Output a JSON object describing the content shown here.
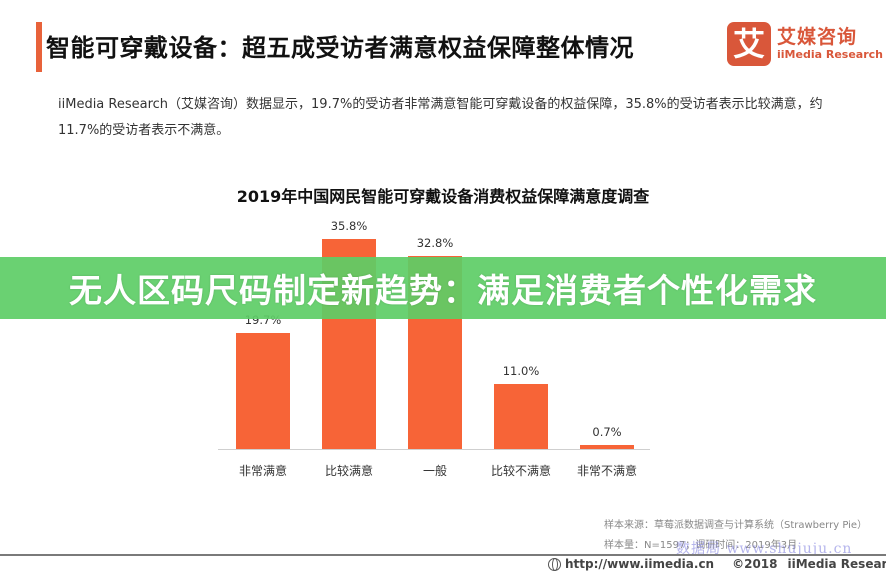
{
  "header": {
    "title": "智能可穿戴设备：超五成受访者满意权益保障整体情况",
    "accent_color": "#e8623a"
  },
  "logo": {
    "mark": "艾",
    "name_cn": "艾媒咨询",
    "name_en": "iiMedia Research",
    "color": "#d9573a"
  },
  "intro": {
    "text": "iiMedia Research（艾媒咨询）数据显示，19.7%的受访者非常满意智能可穿戴设备的权益保障，35.8%的受访者表示比较满意，约11.7%的受访者表示不满意。"
  },
  "banner": {
    "text": "无人区码尺码制定新趋势：满足消费者个性化需求",
    "color": "#5dcd66"
  },
  "chart_data": {
    "type": "bar",
    "title": "2019年中国网民智能可穿戴设备消费权益保障满意度调查",
    "categories": [
      "非常满意",
      "比较满意",
      "一般",
      "比较不满意",
      "非常不满意"
    ],
    "values": [
      19.7,
      35.8,
      32.8,
      11.0,
      0.7
    ],
    "value_labels": [
      "19.7%",
      "35.8%",
      "32.8%",
      "11.0%",
      "0.7%"
    ],
    "xlabel": "",
    "ylabel": "",
    "unit": "%",
    "ylim": [
      0,
      40
    ],
    "grid": false,
    "legend": "none",
    "bar_color": "#f76437"
  },
  "source": {
    "line1": "样本来源：草莓派数据调查与计算系统（Strawberry Pie）",
    "line2": "样本量：N=1597；调研时间：2019年3月"
  },
  "watermark": {
    "text": "数据局 www.shujuju.cn"
  },
  "footer": {
    "url": "http://www.iimedia.cn",
    "copyright": "©2018",
    "org": "iiMedia Research Inc"
  }
}
